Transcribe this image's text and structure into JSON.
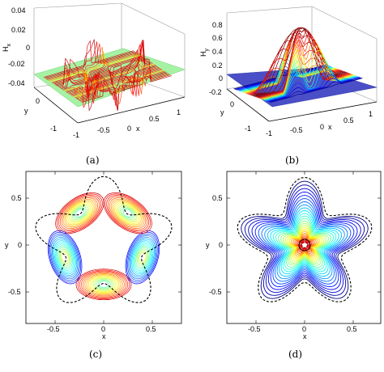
{
  "chart_data": [
    {
      "type": "surface",
      "caption": "(a)",
      "zlabel": "H",
      "zlabel_sub": "x",
      "xlabel": "x",
      "ylabel": "y",
      "zticks": [
        "0.04",
        "0.02",
        "0",
        "-0.02",
        "-0.04"
      ],
      "xticks": [
        "-1",
        "-0.5",
        "0",
        "0.5",
        "1"
      ],
      "yticks": [
        "0",
        "-1"
      ],
      "zlim": [
        -0.04,
        0.04
      ],
      "colormap": "jet"
    },
    {
      "type": "surface",
      "caption": "(b)",
      "zlabel": "H",
      "zlabel_sub": "y",
      "xlabel": "x",
      "ylabel": "y",
      "zticks": [
        "0.8",
        "0.6",
        "0.4",
        "0.2",
        "0",
        "-0.2"
      ],
      "xticks": [
        "-1",
        "-0.5",
        "0",
        "0.5",
        "1"
      ],
      "yticks": [
        "0",
        "-1"
      ],
      "zlim": [
        -0.2,
        0.9
      ],
      "colormap": "jet"
    },
    {
      "type": "contour",
      "caption": "(c)",
      "xlabel": "x",
      "ylabel": "y",
      "xticks": [
        "-0.5",
        "0",
        "0.5"
      ],
      "yticks": [
        "0.5",
        "0",
        "-0.5"
      ],
      "xlim": [
        -0.8,
        0.8
      ],
      "ylim": [
        -0.8,
        0.8
      ],
      "colormap": "jet"
    },
    {
      "type": "contour",
      "caption": "(d)",
      "xlabel": "x",
      "ylabel": "y",
      "xticks": [
        "-0.5",
        "0",
        "0.5"
      ],
      "yticks": [
        "0.5",
        "0",
        "-0.5"
      ],
      "xlim": [
        -0.8,
        0.8
      ],
      "ylim": [
        -0.8,
        0.8
      ],
      "colormap": "jet"
    }
  ]
}
